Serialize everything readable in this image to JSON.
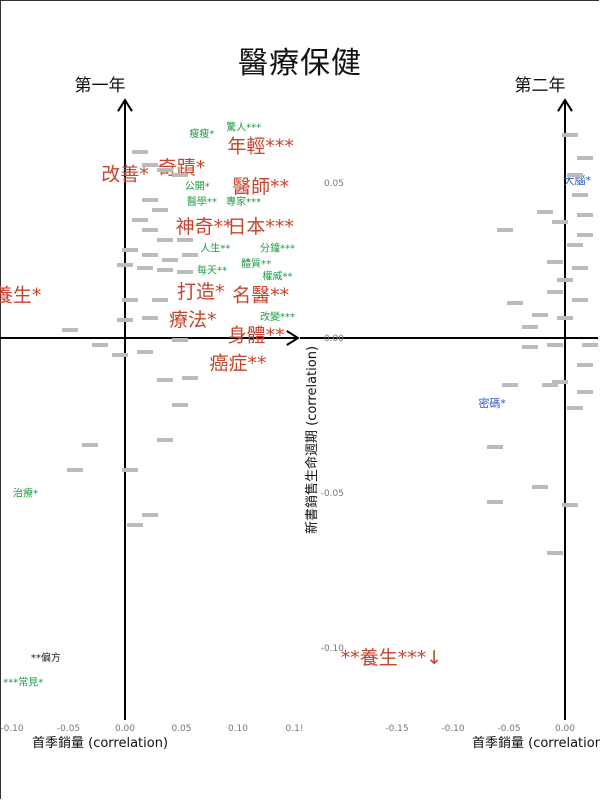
{
  "title": "醫療保健",
  "colors": {
    "red": "#c8432b",
    "green": "#1e9a45",
    "blue": "#2f58c8",
    "black": "#222222",
    "axis": "#000000"
  },
  "chart_data": [
    {
      "type": "scatter",
      "panel_label": "第一年",
      "xlabel": "首季銷量 (correlation)",
      "ylabel": "",
      "xlim": [
        -0.11,
        0.15
      ],
      "ylim": [
        -0.125,
        0.075
      ],
      "x_ticks": [
        {
          "value": -0.1,
          "label": "-0.10"
        },
        {
          "value": -0.05,
          "label": "-0.05"
        },
        {
          "value": 0.0,
          "label": "0.00"
        },
        {
          "value": 0.05,
          "label": "0.05"
        },
        {
          "value": 0.1,
          "label": "0.10"
        },
        {
          "value": 0.15,
          "label": "0.1!"
        }
      ],
      "y_ticks": [],
      "points": [
        {
          "label": "瘦瘦*",
          "x": 0.068,
          "y": 0.066,
          "size": 10,
          "color": "green"
        },
        {
          "label": "驚人***",
          "x": 0.105,
          "y": 0.068,
          "size": 10,
          "color": "green"
        },
        {
          "label": "年輕***",
          "x": 0.12,
          "y": 0.062,
          "size": 19,
          "color": "red"
        },
        {
          "label": "改善*",
          "x": 0.0,
          "y": 0.053,
          "size": 19,
          "color": "red"
        },
        {
          "label": "奇蹟*",
          "x": 0.05,
          "y": 0.055,
          "size": 19,
          "color": "red"
        },
        {
          "label": "醫師**",
          "x": 0.12,
          "y": 0.049,
          "size": 19,
          "color": "red"
        },
        {
          "label": "公開*",
          "x": 0.064,
          "y": 0.049,
          "size": 10,
          "color": "green"
        },
        {
          "label": "醫學**",
          "x": 0.068,
          "y": 0.044,
          "size": 10,
          "color": "green"
        },
        {
          "label": "專家***",
          "x": 0.105,
          "y": 0.044,
          "size": 10,
          "color": "green"
        },
        {
          "label": "神奇**",
          "x": 0.07,
          "y": 0.036,
          "size": 19,
          "color": "red"
        },
        {
          "label": "日本***",
          "x": 0.12,
          "y": 0.036,
          "size": 19,
          "color": "red"
        },
        {
          "label": "人生**",
          "x": 0.08,
          "y": 0.029,
          "size": 10,
          "color": "green"
        },
        {
          "label": "分鐘***",
          "x": 0.135,
          "y": 0.029,
          "size": 10,
          "color": "green"
        },
        {
          "label": "體質**",
          "x": 0.116,
          "y": 0.024,
          "size": 10,
          "color": "green"
        },
        {
          "label": "每天**",
          "x": 0.077,
          "y": 0.022,
          "size": 10,
          "color": "green"
        },
        {
          "label": "權威**",
          "x": 0.135,
          "y": 0.02,
          "size": 10,
          "color": "green"
        },
        {
          "label": "打造*",
          "x": 0.067,
          "y": 0.015,
          "size": 19,
          "color": "red"
        },
        {
          "label": "名醫**",
          "x": 0.12,
          "y": 0.014,
          "size": 19,
          "color": "red"
        },
        {
          "label": "養生*",
          "x": -0.095,
          "y": 0.014,
          "size": 19,
          "color": "red"
        },
        {
          "label": "改變***",
          "x": 0.135,
          "y": 0.007,
          "size": 10,
          "color": "green"
        },
        {
          "label": "療法*",
          "x": 0.06,
          "y": 0.006,
          "size": 19,
          "color": "red"
        },
        {
          "label": "身體**",
          "x": 0.116,
          "y": 0.001,
          "size": 19,
          "color": "red"
        },
        {
          "label": "癌症**",
          "x": 0.1,
          "y": -0.008,
          "size": 19,
          "color": "red"
        },
        {
          "label": "治療*",
          "x": -0.088,
          "y": -0.05,
          "size": 10,
          "color": "green"
        },
        {
          "label": "**偏方",
          "x": -0.07,
          "y": -0.103,
          "size": 10,
          "color": "black"
        },
        {
          "label": "***常見*",
          "x": -0.09,
          "y": -0.111,
          "size": 10,
          "color": "green"
        }
      ]
    },
    {
      "type": "scatter",
      "panel_label": "第二年",
      "xlabel": "首季銷量 (correlation)",
      "ylabel": "新書銷售生命週期 (correlation)",
      "xlim": [
        -0.205,
        0.032
      ],
      "ylim": [
        -0.125,
        0.075
      ],
      "x_ticks": [
        {
          "value": -0.15,
          "label": "-0.15"
        },
        {
          "value": -0.1,
          "label": "-0.10"
        },
        {
          "value": -0.05,
          "label": "-0.05"
        },
        {
          "value": 0.0,
          "label": "0.00"
        }
      ],
      "y_ticks": [
        {
          "value": 0.05,
          "label": "0.05"
        },
        {
          "value": 0.0,
          "label": "0.00"
        },
        {
          "value": -0.05,
          "label": "-0.05"
        },
        {
          "value": -0.1,
          "label": "-0.10"
        }
      ],
      "points": [
        {
          "label": "大腦*",
          "x": 0.011,
          "y": 0.051,
          "size": 11,
          "color": "blue"
        },
        {
          "label": "密碼*",
          "x": -0.065,
          "y": -0.021,
          "size": 11,
          "color": "blue"
        },
        {
          "label": "**養生***↓",
          "x": -0.155,
          "y": -0.103,
          "size": 19,
          "color": "red"
        }
      ]
    }
  ]
}
